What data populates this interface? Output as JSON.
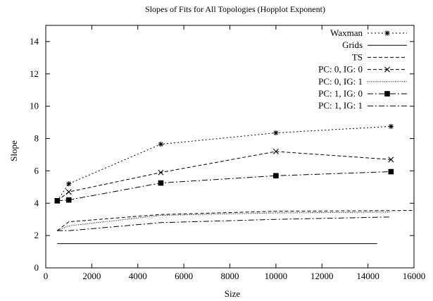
{
  "chart_data": {
    "type": "line",
    "title": "Slopes of Fits for All Topologies (Hopplot Exponent)",
    "xlabel": "Size",
    "ylabel": "Slope",
    "xlim": [
      0,
      16000
    ],
    "ylim": [
      0,
      15
    ],
    "xticks": [
      0,
      2000,
      4000,
      6000,
      8000,
      10000,
      12000,
      14000,
      16000
    ],
    "yticks": [
      0,
      2,
      4,
      6,
      8,
      10,
      12,
      14
    ],
    "grid": false,
    "legend_position": "top-right",
    "series": [
      {
        "name": "Waxman",
        "style": "dotted",
        "marker": "star",
        "x": [
          500,
          1000,
          5000,
          10000,
          15000
        ],
        "y": [
          4.15,
          5.2,
          7.65,
          8.35,
          8.75
        ]
      },
      {
        "name": "Grids",
        "style": "solid",
        "marker": "none",
        "x": [
          500,
          14400
        ],
        "y": [
          1.5,
          1.5
        ]
      },
      {
        "name": "TS",
        "style": "dashed",
        "marker": "none",
        "x": [
          500,
          1000,
          5000,
          10000,
          16000
        ],
        "y": [
          2.3,
          2.85,
          3.3,
          3.5,
          3.55
        ]
      },
      {
        "name": "PC: 0, IG: 0",
        "style": "dashed",
        "marker": "x",
        "x": [
          500,
          1000,
          5000,
          10000,
          15000
        ],
        "y": [
          4.15,
          4.7,
          5.9,
          7.2,
          6.7
        ]
      },
      {
        "name": "PC: 0, IG: 1",
        "style": "fine-dotted",
        "marker": "none",
        "x": [
          500,
          1000,
          5000,
          10000,
          15000
        ],
        "y": [
          2.3,
          2.6,
          3.25,
          3.4,
          3.45
        ]
      },
      {
        "name": "PC: 1, IG: 0",
        "style": "dashdot",
        "marker": "square",
        "x": [
          500,
          1000,
          5000,
          10000,
          15000
        ],
        "y": [
          4.15,
          4.2,
          5.25,
          5.7,
          5.95
        ]
      },
      {
        "name": "PC: 1, IG: 1",
        "style": "dashdot",
        "marker": "none",
        "x": [
          500,
          1000,
          5000,
          10000,
          15000
        ],
        "y": [
          2.3,
          2.3,
          2.8,
          3.0,
          3.15
        ]
      }
    ]
  }
}
